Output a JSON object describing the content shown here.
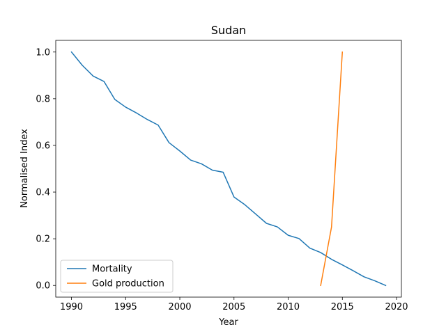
{
  "chart_data": {
    "type": "line",
    "title": "Sudan",
    "xlabel": "Year",
    "ylabel": "Normalised Index",
    "xlim": [
      1988.55,
      2020.45
    ],
    "ylim": [
      -0.05,
      1.05
    ],
    "xticks": [
      1990,
      1995,
      2000,
      2005,
      2010,
      2015,
      2020
    ],
    "xtick_labels": [
      "1990",
      "1995",
      "2000",
      "2005",
      "2010",
      "2015",
      "2020"
    ],
    "yticks": [
      0.0,
      0.2,
      0.4,
      0.6,
      0.8,
      1.0
    ],
    "ytick_labels": [
      "0.0",
      "0.2",
      "0.4",
      "0.6",
      "0.8",
      "1.0"
    ],
    "grid": false,
    "legend_position": "lower-left",
    "series": [
      {
        "name": "Mortality",
        "color": "#1f77b4",
        "x": [
          1990,
          1991,
          1992,
          1993,
          1994,
          1995,
          1996,
          1997,
          1998,
          1999,
          2000,
          2001,
          2002,
          2003,
          2004,
          2005,
          2006,
          2007,
          2008,
          2009,
          2010,
          2011,
          2012,
          2013,
          2014,
          2015,
          2016,
          2017,
          2018,
          2019
        ],
        "y": [
          1.0,
          0.943,
          0.897,
          0.874,
          0.797,
          0.764,
          0.739,
          0.711,
          0.687,
          0.612,
          0.576,
          0.537,
          0.521,
          0.494,
          0.485,
          0.379,
          0.346,
          0.306,
          0.266,
          0.251,
          0.215,
          0.201,
          0.16,
          0.141,
          0.112,
          0.088,
          0.063,
          0.037,
          0.02,
          0.0
        ]
      },
      {
        "name": "Gold production",
        "color": "#ff7f0e",
        "x": [
          2013,
          2014,
          2015
        ],
        "y": [
          0.0,
          0.25,
          1.0
        ]
      }
    ]
  }
}
